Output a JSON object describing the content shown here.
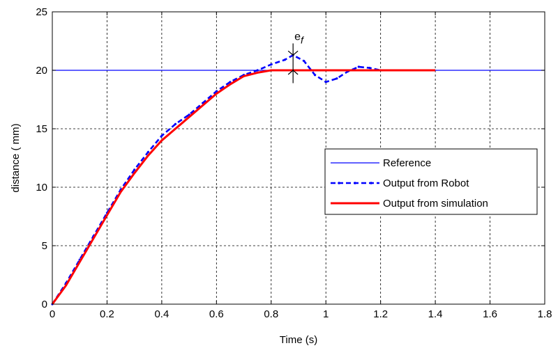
{
  "chart_data": {
    "type": "line",
    "title": "",
    "xlabel": "Time (s)",
    "ylabel": "distance ( mm)",
    "xlim": [
      0,
      1.8
    ],
    "ylim": [
      0,
      25
    ],
    "xticks": [
      0,
      0.2,
      0.4,
      0.6,
      0.8,
      1.0,
      1.2,
      1.4,
      1.6,
      1.8
    ],
    "yticks": [
      0,
      5,
      10,
      15,
      20,
      25
    ],
    "xtick_labels": [
      "0",
      "0.2",
      "0.4",
      "0.6",
      "0.8",
      "1",
      "1.2",
      "1.4",
      "1.6",
      "1.8"
    ],
    "ytick_labels": [
      "0",
      "5",
      "10",
      "15",
      "20",
      "25"
    ],
    "grid": true,
    "legend_position": "center-right",
    "series": [
      {
        "name": "Reference",
        "color": "#0000ff",
        "style": "solid-thin",
        "x": [
          0,
          1.8
        ],
        "y": [
          20,
          20
        ]
      },
      {
        "name": "Output from Robot",
        "color": "#0000ff",
        "style": "dashed-markers",
        "x": [
          0,
          0.05,
          0.1,
          0.15,
          0.2,
          0.25,
          0.3,
          0.35,
          0.4,
          0.45,
          0.5,
          0.55,
          0.6,
          0.65,
          0.7,
          0.75,
          0.8,
          0.85,
          0.88,
          0.92,
          0.96,
          1.0,
          1.04,
          1.08,
          1.12,
          1.16,
          1.2
        ],
        "y": [
          0,
          1.8,
          3.8,
          5.8,
          7.8,
          9.8,
          11.5,
          13.0,
          14.4,
          15.4,
          16.2,
          17.2,
          18.2,
          19.0,
          19.6,
          20.0,
          20.5,
          20.9,
          21.3,
          20.8,
          19.6,
          19.0,
          19.3,
          19.9,
          20.3,
          20.2,
          20.0
        ]
      },
      {
        "name": "Output from simulation",
        "color": "#ff0000",
        "style": "solid-thick",
        "x": [
          0,
          0.05,
          0.1,
          0.15,
          0.2,
          0.25,
          0.3,
          0.35,
          0.4,
          0.45,
          0.5,
          0.55,
          0.6,
          0.65,
          0.7,
          0.75,
          0.8,
          0.9,
          1.0,
          1.1,
          1.2,
          1.3,
          1.4
        ],
        "y": [
          0,
          1.6,
          3.6,
          5.6,
          7.6,
          9.6,
          11.2,
          12.7,
          14.0,
          15.0,
          16.0,
          17.0,
          18.0,
          18.8,
          19.5,
          19.8,
          20.0,
          20.0,
          20.0,
          20.0,
          20.0,
          20.0,
          20.0
        ]
      }
    ],
    "annotations": [
      {
        "text": "e",
        "subscript": "f",
        "x": 0.88
      }
    ]
  }
}
